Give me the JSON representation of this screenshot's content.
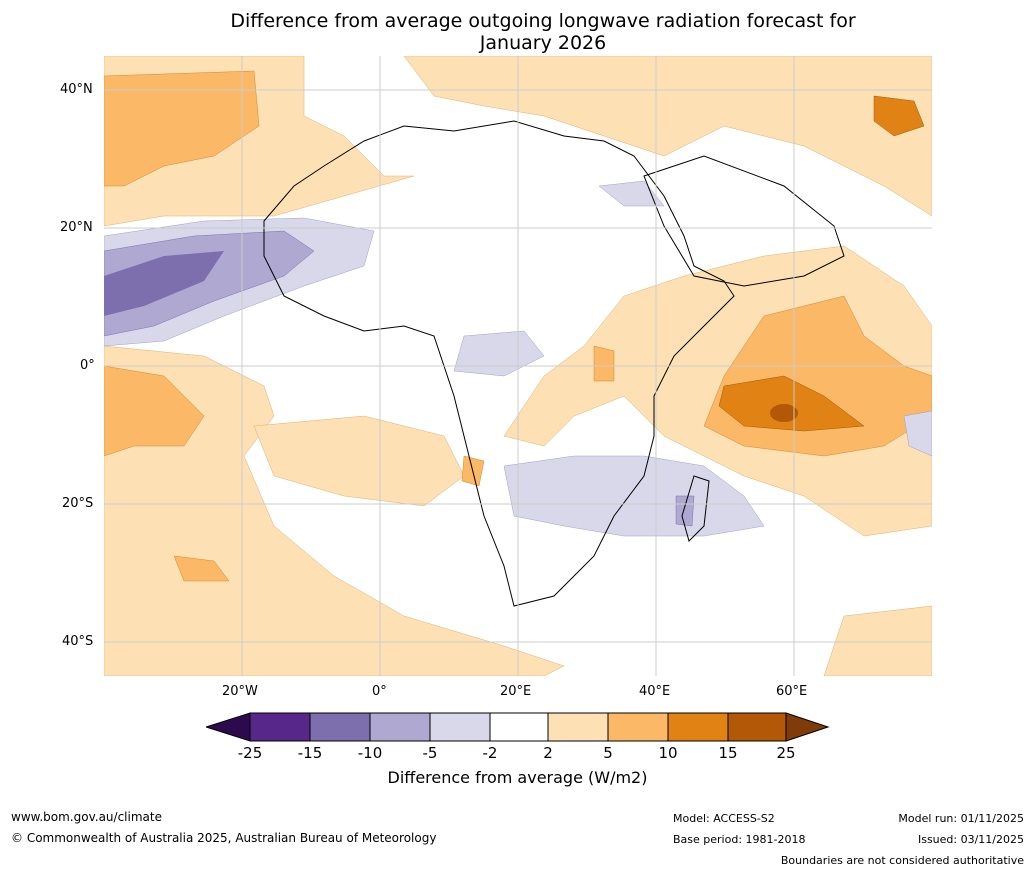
{
  "title_line1": "Difference from average outgoing longwave radiation forecast for",
  "title_line2": "January 2026",
  "lat_labels": [
    "40°N",
    "20°N",
    "0°",
    "20°S",
    "40°S"
  ],
  "lon_labels": [
    "20°W",
    "0°",
    "20°E",
    "40°E",
    "60°E"
  ],
  "colorbar": {
    "ticks": [
      "-25",
      "-15",
      "-10",
      "-5",
      "-2",
      "2",
      "5",
      "10",
      "15",
      "25"
    ],
    "colors": [
      "#2d0a4e",
      "#58278a",
      "#7d6fad",
      "#afa8d1",
      "#d8d8ea",
      "#ffffff",
      "#fde0b4",
      "#fbb866",
      "#e08214",
      "#b35806",
      "#7f3b08"
    ],
    "title": "Difference from average (W/m2)"
  },
  "footer": {
    "url": "www.bom.gov.au/climate",
    "copyright": "© Commonwealth of Australia 2025, Australian Bureau of Meteorology",
    "model": "Model: ACCESS-S2",
    "base_period": "Base period: 1981-2018",
    "model_run": "Model run: 01/11/2025",
    "issued": "Issued: 03/11/2025",
    "disclaimer": "Boundaries are not considered authoritative"
  }
}
